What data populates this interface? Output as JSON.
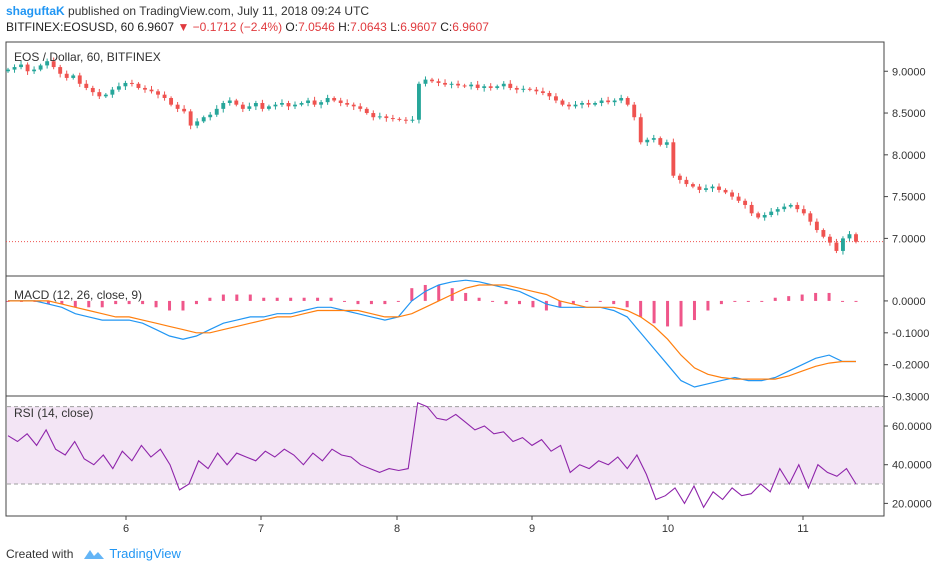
{
  "header": {
    "author": "shaguftaK",
    "published_text": "published on TradingView.com, July 11, 2018 09:24 UTC",
    "symbol": "BITFINEX:EOSUSD, 60",
    "last_price": "6.9607",
    "change": "−0.1712 (−2.4%)",
    "o_label": "O:",
    "o_value": "7.0546",
    "h_label": "H:",
    "h_value": "7.0643",
    "l_label": "L:",
    "l_value": "6.9607",
    "c_label": "C:",
    "c_value": "6.9607"
  },
  "footer": {
    "created_with": "Created with",
    "brand": "TradingView"
  },
  "colors": {
    "up": "#26a69a",
    "down": "#ef5350",
    "macd": "#2196f3",
    "signal": "#ff7f0e",
    "rsi": "#8e24aa",
    "rsi_band": "#f3e5f5"
  },
  "chart_data": [
    {
      "type": "candlestick",
      "title": "EOS / Dollar, 60, BITFINEX",
      "x_ticks": [
        "6",
        "7",
        "8",
        "9",
        "10",
        "11"
      ],
      "y_ticks": [
        "9.0000",
        "8.5000",
        "8.0000",
        "7.5000",
        "7.0000"
      ],
      "ylim": [
        6.55,
        9.35
      ],
      "last_price_line": 6.9607,
      "close": [
        9.02,
        9.05,
        9.08,
        9.0,
        9.02,
        9.07,
        9.12,
        9.05,
        8.97,
        8.92,
        8.95,
        8.85,
        8.8,
        8.75,
        8.7,
        8.72,
        8.78,
        8.82,
        8.86,
        8.85,
        8.8,
        8.78,
        8.76,
        8.72,
        8.68,
        8.6,
        8.55,
        8.52,
        8.35,
        8.4,
        8.45,
        8.48,
        8.55,
        8.62,
        8.65,
        8.6,
        8.55,
        8.58,
        8.62,
        8.55,
        8.58,
        8.6,
        8.62,
        8.58,
        8.6,
        8.62,
        8.65,
        8.6,
        8.63,
        8.68,
        8.65,
        8.62,
        8.6,
        8.58,
        8.55,
        8.5,
        8.45,
        8.46,
        8.44,
        8.43,
        8.42,
        8.41,
        8.42,
        8.85,
        8.9,
        8.88,
        8.86,
        8.84,
        8.85,
        8.83,
        8.82,
        8.84,
        8.8,
        8.82,
        8.8,
        8.82,
        8.85,
        8.8,
        8.78,
        8.79,
        8.78,
        8.76,
        8.74,
        8.7,
        8.65,
        8.6,
        8.58,
        8.6,
        8.62,
        8.6,
        8.62,
        8.65,
        8.63,
        8.65,
        8.68,
        8.6,
        8.45,
        8.15,
        8.18,
        8.2,
        8.12,
        8.15,
        7.75,
        7.7,
        7.65,
        7.62,
        7.58,
        7.6,
        7.62,
        7.58,
        7.55,
        7.5,
        7.45,
        7.4,
        7.3,
        7.25,
        7.28,
        7.32,
        7.35,
        7.38,
        7.4,
        7.35,
        7.3,
        7.2,
        7.1,
        7.02,
        6.95,
        6.85,
        7.0,
        7.05,
        6.96
      ],
      "x_labels_note": "",
      "open": []
    },
    {
      "type": "line",
      "title": "MACD (12, 26, close, 9)",
      "y_ticks": [
        "0.0000",
        "-0.1000",
        "-0.2000",
        "-0.3000"
      ],
      "ylim": [
        -0.295,
        0.075
      ],
      "series": [
        {
          "role": "macd",
          "values": [
            0.0,
            0.0,
            0.0,
            -0.01,
            -0.02,
            -0.04,
            -0.05,
            -0.06,
            -0.06,
            -0.06,
            -0.07,
            -0.09,
            -0.11,
            -0.12,
            -0.11,
            -0.09,
            -0.07,
            -0.06,
            -0.05,
            -0.05,
            -0.04,
            -0.04,
            -0.03,
            -0.02,
            -0.02,
            -0.03,
            -0.04,
            -0.05,
            -0.06,
            -0.05,
            0.0,
            0.03,
            0.05,
            0.06,
            0.065,
            0.06,
            0.05,
            0.04,
            0.03,
            0.01,
            -0.01,
            -0.02,
            -0.02,
            -0.02,
            -0.02,
            -0.03,
            -0.05,
            -0.1,
            -0.15,
            -0.2,
            -0.25,
            -0.27,
            -0.26,
            -0.25,
            -0.24,
            -0.25,
            -0.25,
            -0.24,
            -0.22,
            -0.2,
            -0.18,
            -0.17,
            -0.19,
            -0.19
          ]
        },
        {
          "role": "signal",
          "values": [
            0.0,
            0.0,
            0.0,
            0.0,
            -0.01,
            -0.02,
            -0.03,
            -0.04,
            -0.05,
            -0.05,
            -0.06,
            -0.07,
            -0.08,
            -0.09,
            -0.1,
            -0.1,
            -0.09,
            -0.08,
            -0.07,
            -0.06,
            -0.05,
            -0.05,
            -0.04,
            -0.03,
            -0.03,
            -0.03,
            -0.03,
            -0.04,
            -0.05,
            -0.05,
            -0.04,
            -0.02,
            0.0,
            0.02,
            0.04,
            0.05,
            0.05,
            0.05,
            0.04,
            0.03,
            0.02,
            0.0,
            -0.01,
            -0.02,
            -0.02,
            -0.02,
            -0.03,
            -0.05,
            -0.08,
            -0.12,
            -0.17,
            -0.21,
            -0.23,
            -0.24,
            -0.245,
            -0.245,
            -0.245,
            -0.245,
            -0.235,
            -0.22,
            -0.205,
            -0.195,
            -0.19,
            -0.19
          ]
        }
      ],
      "histogram": [
        0.0,
        0.0,
        0.0,
        -0.01,
        -0.01,
        -0.02,
        -0.02,
        -0.02,
        -0.01,
        -0.01,
        -0.01,
        -0.02,
        -0.03,
        -0.03,
        -0.01,
        0.01,
        0.02,
        0.02,
        0.02,
        0.01,
        0.01,
        0.01,
        0.01,
        0.01,
        0.01,
        0.0,
        -0.01,
        -0.01,
        -0.01,
        0.0,
        0.04,
        0.05,
        0.05,
        0.04,
        0.025,
        0.01,
        0.0,
        -0.01,
        -0.01,
        -0.02,
        -0.03,
        -0.02,
        -0.01,
        0.0,
        0.0,
        -0.01,
        -0.02,
        -0.05,
        -0.07,
        -0.08,
        -0.08,
        -0.06,
        -0.03,
        -0.01,
        0.0,
        0.0,
        0.0,
        0.01,
        0.015,
        0.02,
        0.025,
        0.025,
        0.0,
        0.0
      ]
    },
    {
      "type": "line",
      "title": "RSI (14, close)",
      "y_ticks": [
        "60.0000",
        "40.0000",
        "20.0000"
      ],
      "ylim": [
        14,
        75
      ],
      "bands": [
        30,
        70
      ],
      "series": [
        {
          "role": "rsi",
          "values": [
            55,
            52,
            56,
            50,
            58,
            48,
            45,
            52,
            43,
            40,
            45,
            38,
            47,
            42,
            50,
            44,
            48,
            40,
            27,
            30,
            42,
            38,
            46,
            40,
            46,
            44,
            42,
            47,
            44,
            48,
            45,
            40,
            46,
            42,
            48,
            45,
            44,
            40,
            38,
            36,
            38,
            37,
            38,
            72,
            70,
            64,
            63,
            66,
            62,
            58,
            60,
            56,
            57,
            52,
            54,
            50,
            53,
            47,
            50,
            36,
            40,
            38,
            42,
            40,
            44,
            38,
            45,
            35,
            22,
            24,
            28,
            20,
            29,
            18,
            26,
            22,
            28,
            24,
            25,
            30,
            26,
            38,
            30,
            40,
            28,
            40,
            36,
            34,
            38,
            30
          ]
        }
      ]
    }
  ]
}
